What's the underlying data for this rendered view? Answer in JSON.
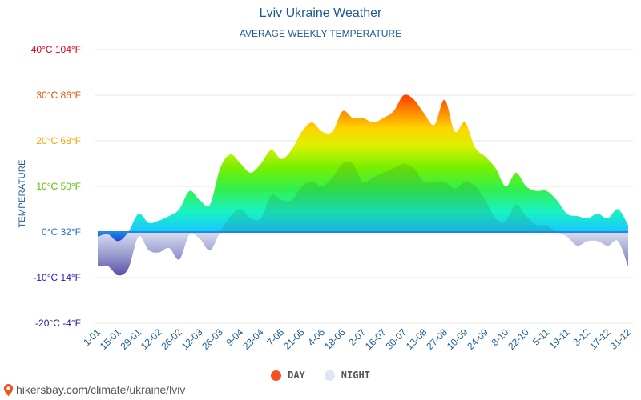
{
  "chart_data": {
    "type": "area",
    "title": "Lviv Ukraine Weather",
    "subtitle": "AVERAGE WEEKLY TEMPERATURE",
    "ylabel": "TEMPERATURE",
    "xlabel": "",
    "ylim": [
      -20,
      40
    ],
    "grid": true,
    "legend_position": "bottom-center",
    "y_ticks": [
      {
        "value": 40,
        "label": "40°C 104°F",
        "color": "#e0001a"
      },
      {
        "value": 30,
        "label": "30°C 86°F",
        "color": "#e65100"
      },
      {
        "value": 20,
        "label": "20°C 68°F",
        "color": "#f2a300"
      },
      {
        "value": 10,
        "label": "10°C 50°F",
        "color": "#5cc200"
      },
      {
        "value": 0,
        "label": "0°C 32°F",
        "color": "#1f72d1"
      },
      {
        "value": -10,
        "label": "-10°C 14°F",
        "color": "#2020c8"
      },
      {
        "value": -20,
        "label": "-20°C -4°F",
        "color": "#1c1c9e"
      }
    ],
    "x_tick_labels": [
      "1-01",
      "15-01",
      "29-01",
      "12-02",
      "26-02",
      "12-03",
      "26-03",
      "9-04",
      "23-04",
      "7-05",
      "21-05",
      "4-06",
      "18-06",
      "2-07",
      "16-07",
      "30-07",
      "13-08",
      "27-08",
      "10-09",
      "24-09",
      "8-10",
      "22-10",
      "5-11",
      "19-11",
      "3-12",
      "17-12",
      "31-12"
    ],
    "weeks": [
      "1-01",
      "8-01",
      "15-01",
      "22-01",
      "29-01",
      "5-02",
      "12-02",
      "19-02",
      "26-02",
      "5-03",
      "12-03",
      "19-03",
      "26-03",
      "2-04",
      "9-04",
      "16-04",
      "23-04",
      "30-04",
      "7-05",
      "14-05",
      "21-05",
      "28-05",
      "4-06",
      "11-06",
      "18-06",
      "25-06",
      "2-07",
      "9-07",
      "16-07",
      "23-07",
      "30-07",
      "6-08",
      "13-08",
      "20-08",
      "27-08",
      "3-09",
      "10-09",
      "17-09",
      "24-09",
      "1-10",
      "8-10",
      "15-10",
      "22-10",
      "29-10",
      "5-11",
      "12-11",
      "19-11",
      "26-11",
      "3-12",
      "10-12",
      "17-12",
      "24-12",
      "31-12"
    ],
    "series": [
      {
        "name": "DAY",
        "color": "#e8410d",
        "values": [
          -1,
          -0.5,
          -2,
          0,
          4,
          2,
          2.5,
          3.5,
          5,
          9,
          7,
          6,
          14,
          17,
          15,
          13,
          15,
          18,
          16,
          18,
          22,
          24,
          22,
          22,
          26.5,
          25,
          25,
          24,
          25,
          26.5,
          30,
          29,
          26,
          23.5,
          29,
          22,
          24,
          18.5,
          16.5,
          14,
          10,
          13,
          10,
          9,
          9,
          7,
          4,
          3.5,
          3,
          4,
          3,
          5,
          1.5
        ]
      },
      {
        "name": "NIGHT",
        "color": "#dde6f2",
        "values": [
          -7.5,
          -7.5,
          -9.5,
          -8,
          -1,
          -4,
          -4.5,
          -3.5,
          -6,
          -0.5,
          -1.5,
          -4,
          0,
          3.5,
          5,
          3,
          3,
          8,
          7,
          7,
          10,
          11,
          10,
          12,
          15,
          15,
          11,
          12,
          13,
          14,
          15,
          14,
          11,
          11,
          11,
          9.5,
          11,
          10,
          7,
          3,
          2.5,
          6,
          3.5,
          1.5,
          1.5,
          0,
          -1,
          -3,
          -2,
          -2,
          -3,
          -2,
          -7.5
        ]
      }
    ]
  },
  "legend": {
    "day_label": "DAY",
    "night_label": "NIGHT"
  },
  "footer": {
    "url": "hikersbay.com/climate/ukraine/lviv"
  },
  "colors": {
    "title": "#1c5a96",
    "grid": "#e6e6e6",
    "zero_line": "#1e88e5",
    "pin": "#f4511e"
  }
}
